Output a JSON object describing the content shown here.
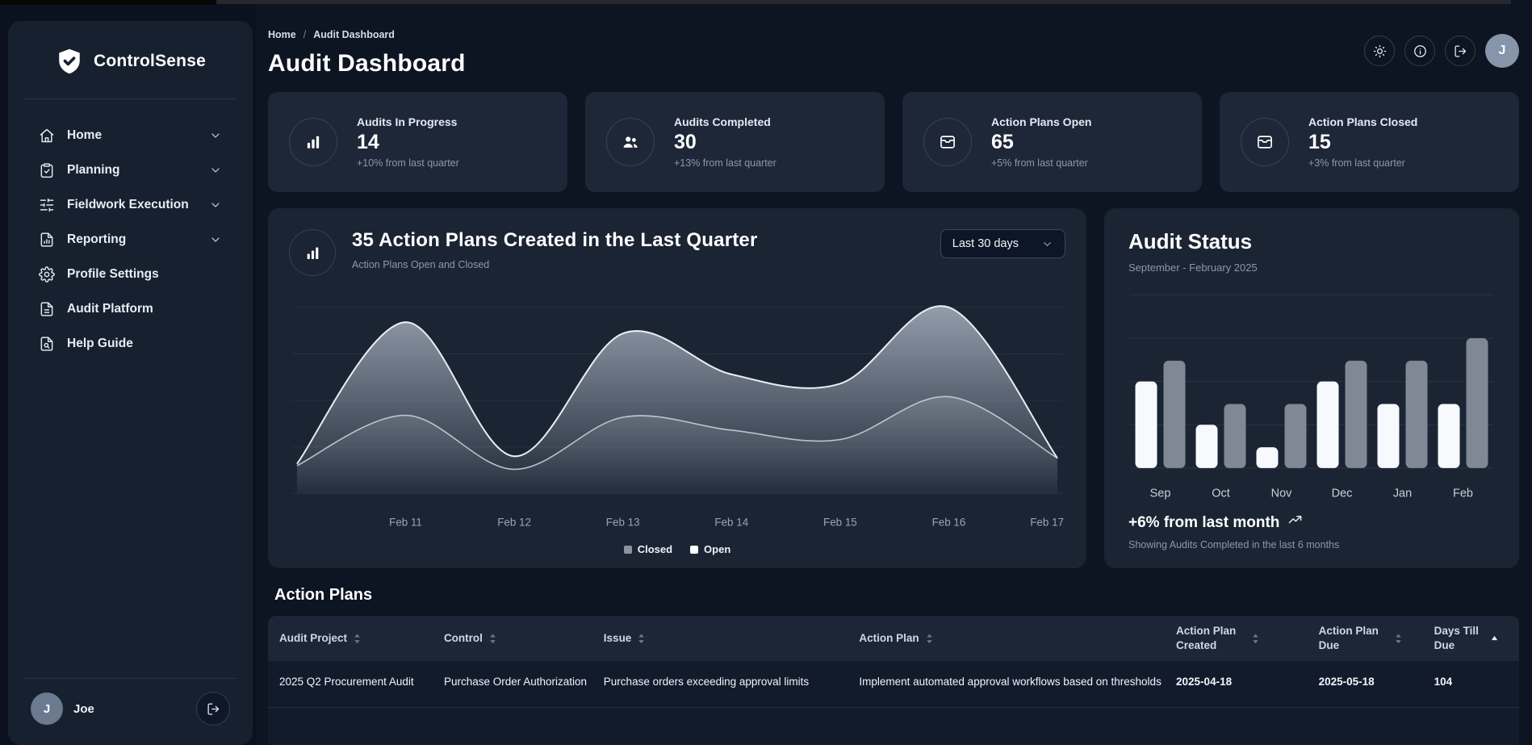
{
  "brand": {
    "name": "ControlSense",
    "icon": "shield-check"
  },
  "sidebar": {
    "items": [
      {
        "label": "Home",
        "icon": "home",
        "expandable": true
      },
      {
        "label": "Planning",
        "icon": "clipboard-check",
        "expandable": true
      },
      {
        "label": "Fieldwork Execution",
        "icon": "sliders",
        "expandable": true
      },
      {
        "label": "Reporting",
        "icon": "file-chart",
        "expandable": true
      },
      {
        "label": "Profile Settings",
        "icon": "gear",
        "expandable": false
      },
      {
        "label": "Audit Platform",
        "icon": "file-text",
        "expandable": false
      },
      {
        "label": "Help Guide",
        "icon": "file-search",
        "expandable": false
      }
    ],
    "user": {
      "initial": "J",
      "name": "Joe",
      "logout_icon": "logout"
    }
  },
  "header": {
    "breadcrumb": [
      "Home",
      "Audit Dashboard"
    ],
    "breadcrumb_separator": "/",
    "title": "Audit Dashboard",
    "actions": [
      {
        "name": "theme-toggle",
        "icon": "sun"
      },
      {
        "name": "info",
        "icon": "info"
      },
      {
        "name": "logout",
        "icon": "logout"
      }
    ],
    "avatar_initial": "J"
  },
  "stats": [
    {
      "icon": "bar-chart",
      "label": "Audits In Progress",
      "value": "14",
      "delta": "+10% from last quarter"
    },
    {
      "icon": "users",
      "label": "Audits Completed",
      "value": "30",
      "delta": "+13% from last quarter"
    },
    {
      "icon": "inbox",
      "label": "Action Plans Open",
      "value": "65",
      "delta": "+5% from last quarter"
    },
    {
      "icon": "inbox",
      "label": "Action Plans Closed",
      "value": "15",
      "delta": "+3% from last quarter"
    }
  ],
  "main_chart": {
    "icon": "bar-chart",
    "title": "35 Action Plans Created in the Last Quarter",
    "subtitle": "Action Plans Open and Closed",
    "range_selector": "Last 30 days"
  },
  "audit_status": {
    "title": "Audit Status",
    "subtitle": "September - February 2025",
    "delta": "+6% from last month",
    "delta_icon": "trending-up",
    "footnote": "Showing Audits Completed in the last 6 months"
  },
  "chart_data": [
    {
      "type": "area",
      "title": "35 Action Plans Created in the Last Quarter",
      "x": [
        "",
        "Feb 11",
        "Feb 12",
        "Feb 13",
        "Feb 14",
        "Feb 15",
        "Feb 16",
        "Feb 17"
      ],
      "series": [
        {
          "name": "Closed",
          "color": "#8b93a2",
          "values": [
            16,
            92,
            20,
            86,
            64,
            59,
            100,
            19
          ]
        },
        {
          "name": "Open",
          "color": "#ffffff",
          "values": [
            15,
            42,
            13,
            41,
            34,
            29,
            52,
            19
          ]
        }
      ],
      "ylim": [
        0,
        100
      ],
      "grid": "horizontal",
      "legend_position": "bottom",
      "note": "no y-axis labels shown; values estimated 0-100 from pixel heights"
    },
    {
      "type": "bar",
      "title": "Audit Status",
      "categories": [
        "Sep",
        "Oct",
        "Nov",
        "Dec",
        "Jan",
        "Feb"
      ],
      "series": [
        {
          "name": "light-bars",
          "color": "#f7f9fc",
          "values": [
            50,
            25,
            12,
            50,
            37,
            37
          ]
        },
        {
          "name": "gray-bars",
          "color": "#808795",
          "values": [
            62,
            37,
            37,
            62,
            62,
            75
          ]
        }
      ],
      "ylim": [
        0,
        100
      ],
      "grid": "horizontal",
      "legend_position": "none",
      "note": "no y-axis labels shown; values estimated 0-100 from pixel heights"
    }
  ],
  "table": {
    "section_title": "Action Plans",
    "columns": [
      {
        "label": "Audit Project",
        "sort": "none"
      },
      {
        "label": "Control",
        "sort": "none"
      },
      {
        "label": "Issue",
        "sort": "none"
      },
      {
        "label": "Action Plan",
        "sort": "none"
      },
      {
        "label": "Action Plan Created",
        "sort": "none"
      },
      {
        "label": "Action Plan Due",
        "sort": "none"
      },
      {
        "label": "Days Till Due",
        "sort": "asc"
      }
    ],
    "rows": [
      [
        "2025 Q2 Procurement Audit",
        "Purchase Order Authorization",
        "Purchase orders exceeding approval limits",
        "Implement automated approval workflows based on thresholds",
        "2025-04-18",
        "2025-05-18",
        "104"
      ]
    ]
  },
  "colors": {
    "page_bg": "#0d1422",
    "sidebar_card_bg": "#16202f",
    "stat_card_bg": "#1d2737",
    "panel_card_bg": "#1a2433",
    "table_header_bg": "#1c2636",
    "table_body_bg": "#121b2b",
    "bar_white": "#f7f9fc",
    "bar_gray": "#808795",
    "legend_closed": "#8b93a2",
    "legend_open": "#ffffff",
    "avatar_bg": "#6c7a90",
    "muted_text": "#8d97a8"
  }
}
